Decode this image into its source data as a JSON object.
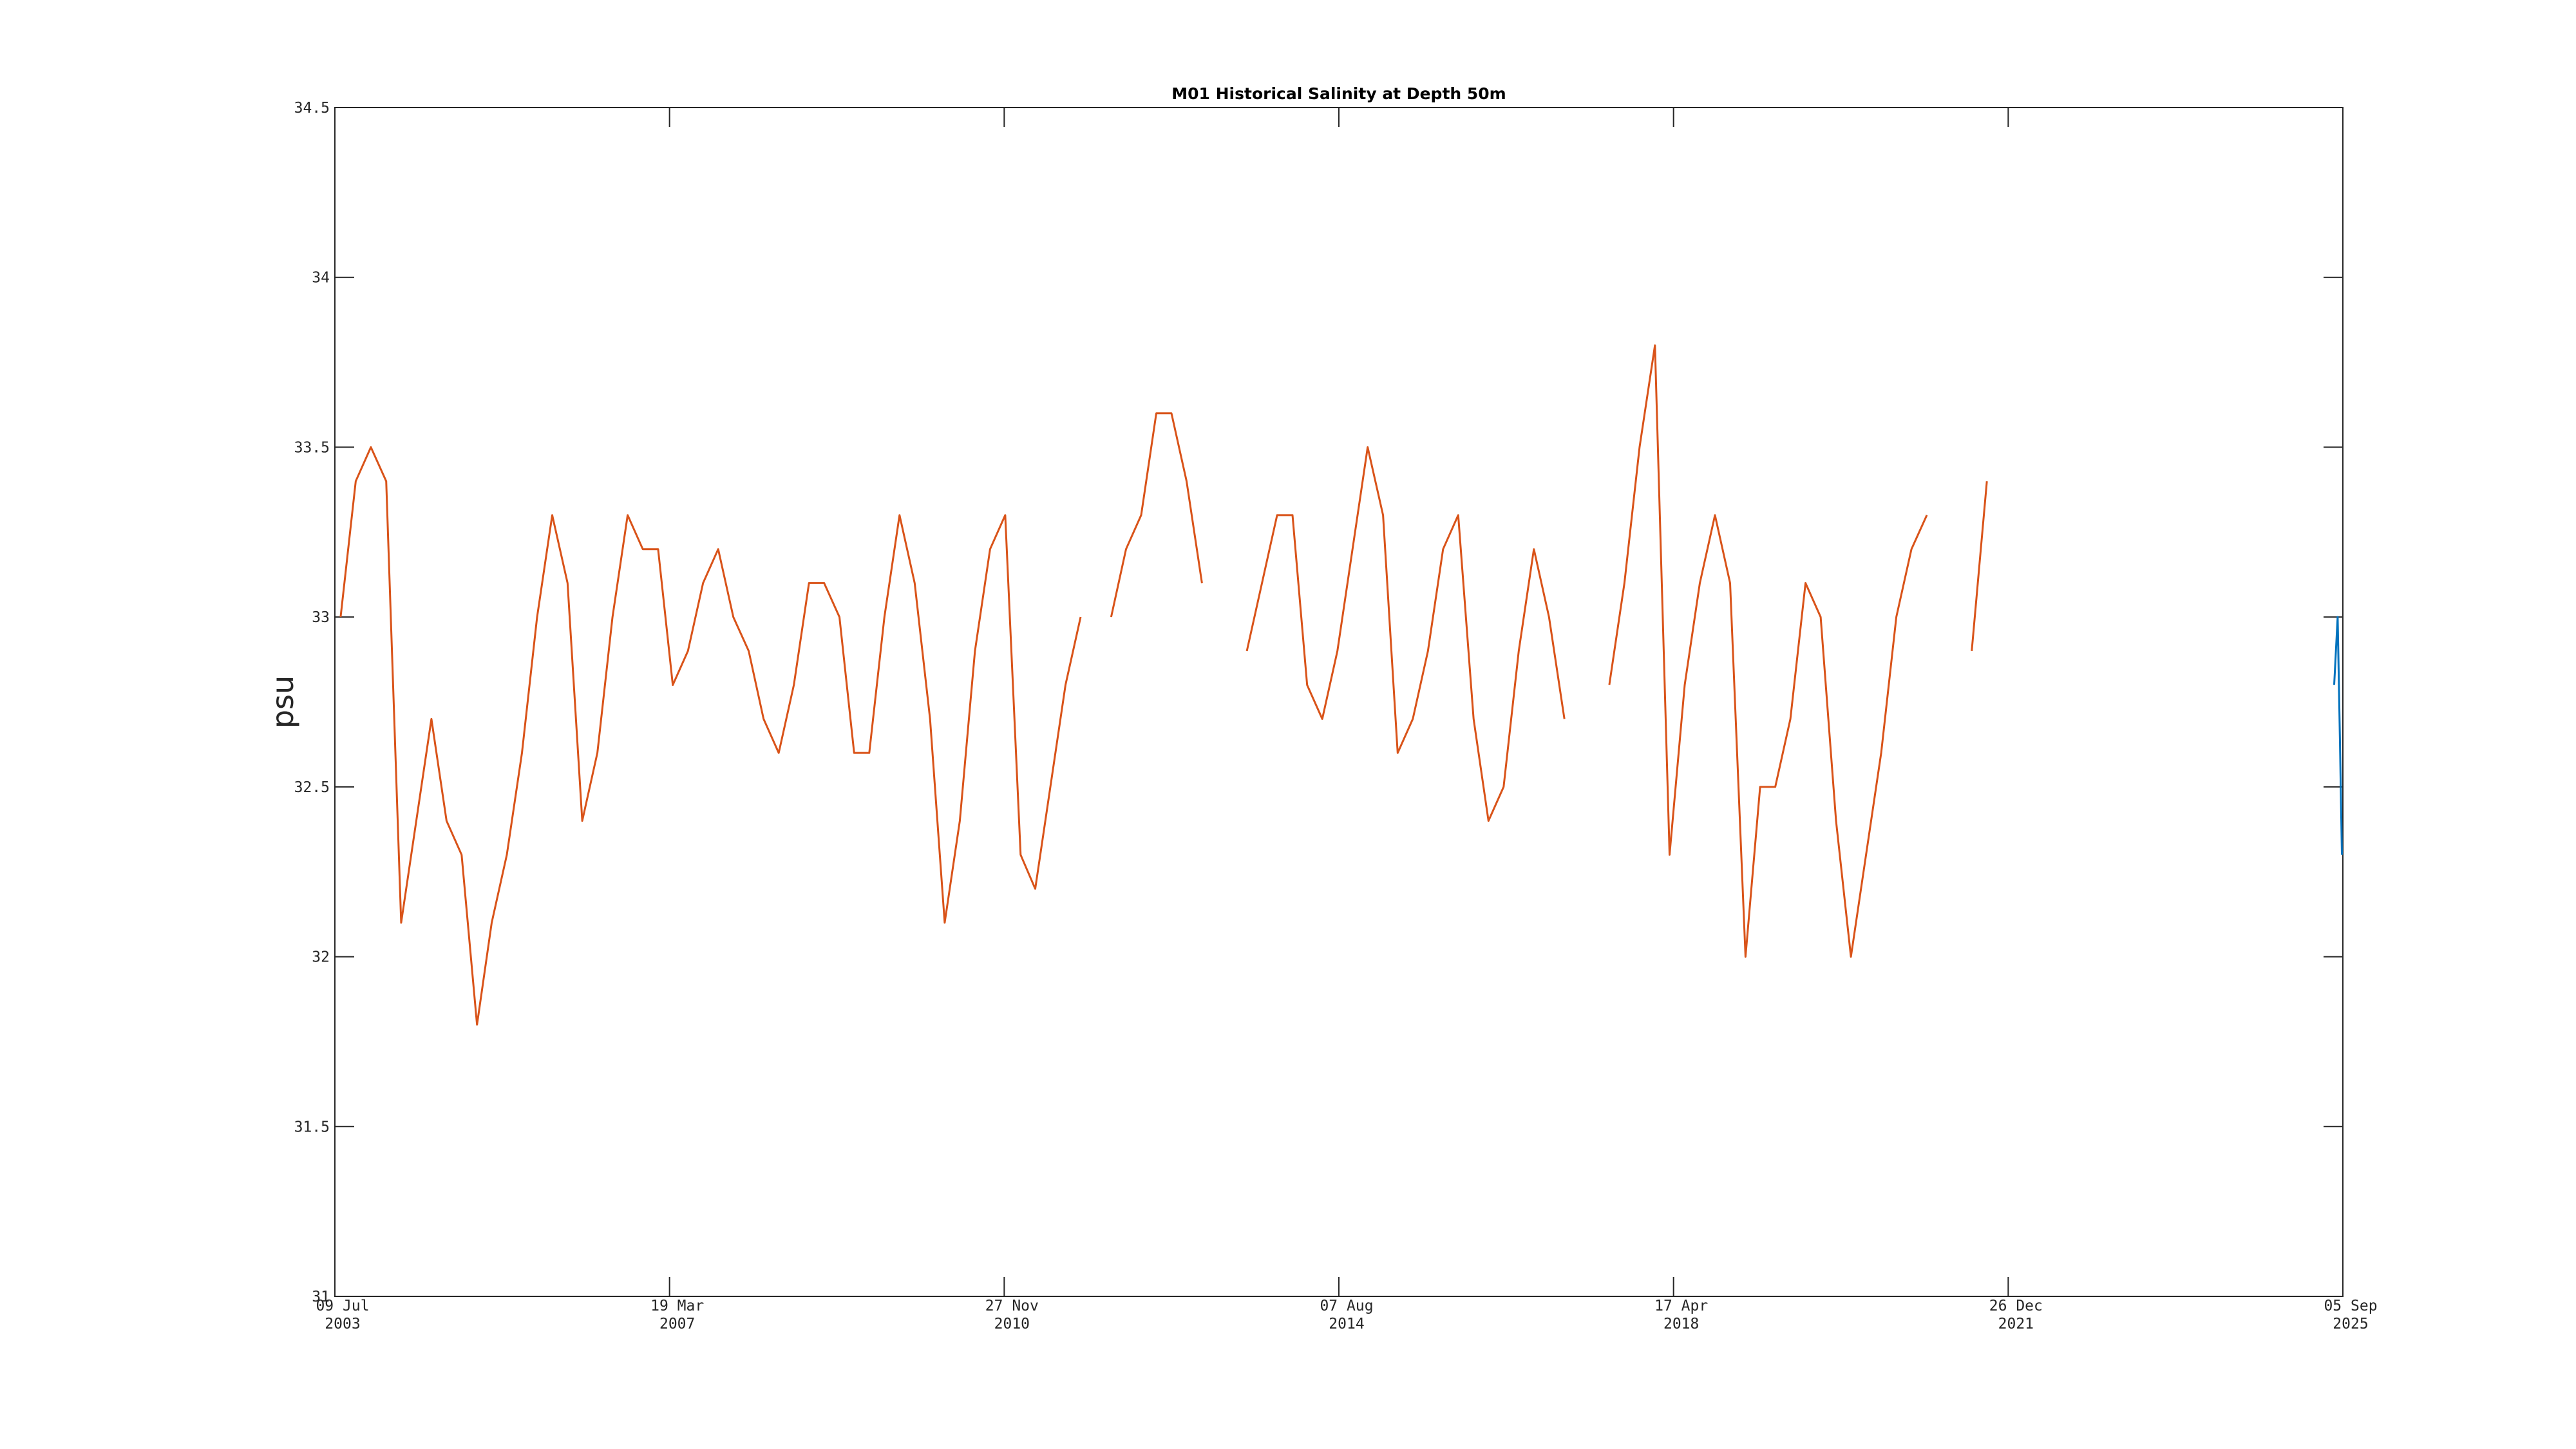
{
  "chart_data": {
    "type": "line",
    "title": "M01 Historical Salinity at Depth 50m",
    "ylabel": "psu",
    "xlim": [
      "2003-07-09",
      "2025-09-05"
    ],
    "xticks": [
      {
        "value": "2003-07-09",
        "label": [
          "09 Jul",
          "2003"
        ]
      },
      {
        "value": "2007-03-19",
        "label": [
          "19 Mar",
          "2007"
        ]
      },
      {
        "value": "2010-11-27",
        "label": [
          "27 Nov",
          "2010"
        ]
      },
      {
        "value": "2014-08-07",
        "label": [
          "07 Aug",
          "2014"
        ]
      },
      {
        "value": "2018-04-17",
        "label": [
          "17 Apr",
          "2018"
        ]
      },
      {
        "value": "2021-12-26",
        "label": [
          "26 Dec",
          "2021"
        ]
      },
      {
        "value": "2025-09-05",
        "label": [
          "05 Sep",
          "2025"
        ]
      }
    ],
    "ylim": [
      31,
      34.5
    ],
    "yticks": [
      31,
      31.5,
      32,
      32.5,
      33,
      33.5,
      34,
      34.5
    ],
    "series": [
      {
        "color": "#d95319",
        "x": [
          "2003-08-01",
          "2003-10-01",
          "2003-12-01",
          "2004-02-01",
          "2004-04-01",
          "2004-06-01",
          "2004-08-01",
          "2004-10-01",
          "2004-12-01",
          "2005-02-01",
          "2005-04-01",
          "2005-06-01",
          "2005-08-01",
          "2005-10-01",
          "2005-12-01",
          "2006-02-01",
          "2006-04-01",
          "2006-06-01",
          "2006-08-01",
          "2006-10-01",
          "2006-12-01",
          "2007-02-01",
          "2007-04-01",
          "2007-06-01",
          "2007-08-01",
          "2007-10-01",
          "2007-12-01",
          "2008-02-01",
          "2008-04-01",
          "2008-06-01",
          "2008-08-01",
          "2008-10-01",
          "2008-12-01",
          "2009-02-01",
          "2009-04-01",
          "2009-06-01",
          "2009-08-01",
          "2009-10-01",
          "2009-12-01",
          "2010-02-01",
          "2010-04-01",
          "2010-06-01",
          "2010-08-01",
          "2010-10-01",
          "2010-12-01",
          "2011-02-01",
          "2011-04-01",
          "2011-06-01",
          "2011-08-01",
          "2011-10-01",
          "2011-12-01",
          "2012-02-01",
          "2012-04-01",
          "2012-06-01",
          "2012-08-01",
          "2012-10-01",
          "2012-12-01",
          "2013-02-01",
          "2013-04-01",
          "2013-06-01",
          "2013-08-01",
          "2013-10-01",
          "2013-12-01",
          "2014-02-01",
          "2014-04-01",
          "2014-06-01",
          "2014-08-01",
          "2014-10-01",
          "2014-12-01",
          "2015-02-01",
          "2015-04-01",
          "2015-06-01",
          "2015-08-01",
          "2015-10-01",
          "2015-12-01",
          "2016-02-01",
          "2016-04-01",
          "2016-06-01",
          "2016-08-01",
          "2016-10-01",
          "2016-12-01",
          "2017-02-01",
          "2017-04-01",
          "2017-06-01",
          "2017-08-01",
          "2017-10-01",
          "2017-12-01",
          "2018-02-01",
          "2018-04-01",
          "2018-06-01",
          "2018-08-01",
          "2018-10-01",
          "2018-12-01",
          "2019-02-01",
          "2019-04-01",
          "2019-06-01",
          "2019-08-01",
          "2019-10-01",
          "2019-12-01",
          "2020-02-01",
          "2020-04-01",
          "2020-06-01",
          "2020-08-01",
          "2020-10-01",
          "2020-12-01",
          "2021-02-01",
          "2021-04-01",
          "2021-06-01",
          "2021-08-01",
          "2021-10-01"
        ],
        "values": [
          33.0,
          33.4,
          33.5,
          33.4,
          32.1,
          32.4,
          32.7,
          32.4,
          32.3,
          31.8,
          32.1,
          32.3,
          32.6,
          33.0,
          33.3,
          33.1,
          32.4,
          32.6,
          33.0,
          33.3,
          33.2,
          33.2,
          32.8,
          32.9,
          33.1,
          33.2,
          33.0,
          32.9,
          32.7,
          32.6,
          32.8,
          33.1,
          33.1,
          33.0,
          32.6,
          32.6,
          33.0,
          33.3,
          33.1,
          32.7,
          32.1,
          32.4,
          32.9,
          33.2,
          33.3,
          32.3,
          32.2,
          32.5,
          32.8,
          33.0,
          null,
          33.0,
          33.2,
          33.3,
          33.6,
          33.6,
          33.4,
          33.1,
          null,
          null,
          32.9,
          33.1,
          33.3,
          33.3,
          32.8,
          32.7,
          32.9,
          33.2,
          33.5,
          33.3,
          32.6,
          32.7,
          32.9,
          33.2,
          33.3,
          32.7,
          32.4,
          32.5,
          32.9,
          33.2,
          33.0,
          32.7,
          null,
          null,
          32.8,
          33.1,
          33.5,
          33.8,
          32.3,
          32.8,
          33.1,
          33.3,
          33.1,
          32.0,
          32.5,
          32.5,
          32.7,
          33.1,
          33.0,
          32.4,
          32.0,
          32.3,
          32.6,
          33.0,
          33.2,
          33.3,
          null,
          null,
          32.9,
          33.4
        ]
      },
      {
        "color": "#0072bd",
        "x": [
          "2025-08-01",
          "2025-08-15",
          "2025-08-25",
          "2025-09-01"
        ],
        "values": [
          32.8,
          33.0,
          32.6,
          32.3
        ]
      }
    ]
  }
}
